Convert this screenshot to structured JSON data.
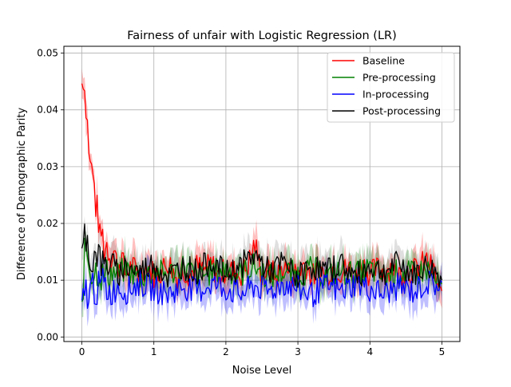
{
  "chart_data": {
    "type": "line",
    "title": "Fairness of unfair with Logistic Regression (LR)",
    "xlabel": "Noise Level",
    "ylabel": "Difference of Demographic Parity",
    "xlim": [
      -0.25,
      5.25
    ],
    "ylim": [
      -0.0008,
      0.0512
    ],
    "xticks": [
      0,
      1,
      2,
      3,
      4,
      5
    ],
    "xtick_labels": [
      "0",
      "1",
      "2",
      "3",
      "4",
      "5"
    ],
    "yticks": [
      0.0,
      0.01,
      0.02,
      0.03,
      0.04,
      0.05
    ],
    "ytick_labels": [
      "0.00",
      "0.01",
      "0.02",
      "0.03",
      "0.04",
      "0.05"
    ],
    "grid": true,
    "legend_position": "upper right",
    "series": [
      {
        "name": "Baseline",
        "color": "#ff0000",
        "x": [
          0.0,
          0.02,
          0.04,
          0.06,
          0.08,
          0.1,
          0.12,
          0.14,
          0.16,
          0.18,
          0.2,
          0.22,
          0.25,
          0.28,
          0.31,
          0.35,
          0.4,
          0.45,
          0.5,
          0.55,
          0.6,
          0.7,
          0.8,
          0.9,
          1.0,
          1.1,
          1.2,
          1.3,
          1.4,
          1.5,
          1.6,
          1.7,
          1.8,
          1.9,
          2.0,
          2.1,
          2.2,
          2.3,
          2.4,
          2.5,
          2.6,
          2.7,
          2.8,
          2.9,
          3.0,
          3.1,
          3.2,
          3.3,
          3.4,
          3.5,
          3.6,
          3.7,
          3.8,
          3.9,
          4.0,
          4.1,
          4.2,
          4.3,
          4.4,
          4.5,
          4.6,
          4.7,
          4.8,
          4.9,
          5.0
        ],
        "values": [
          0.0447,
          0.0462,
          0.0435,
          0.041,
          0.037,
          0.033,
          0.029,
          0.031,
          0.026,
          0.027,
          0.021,
          0.023,
          0.017,
          0.019,
          0.015,
          0.0165,
          0.014,
          0.0155,
          0.012,
          0.0145,
          0.011,
          0.0125,
          0.0105,
          0.013,
          0.011,
          0.0115,
          0.0135,
          0.0105,
          0.012,
          0.011,
          0.0125,
          0.0115,
          0.013,
          0.0105,
          0.012,
          0.0115,
          0.011,
          0.0125,
          0.0165,
          0.011,
          0.012,
          0.0105,
          0.0125,
          0.011,
          0.0115,
          0.013,
          0.0105,
          0.012,
          0.011,
          0.0125,
          0.0115,
          0.012,
          0.0105,
          0.013,
          0.011,
          0.012,
          0.0115,
          0.0125,
          0.011,
          0.012,
          0.0115,
          0.0125,
          0.0135,
          0.011,
          0.0065
        ]
      },
      {
        "name": "Pre-processing",
        "color": "#008000",
        "x": [
          0.0,
          0.05,
          0.1,
          0.15,
          0.2,
          0.3,
          0.4,
          0.5,
          0.6,
          0.8,
          1.0,
          1.2,
          1.4,
          1.6,
          1.8,
          2.0,
          2.2,
          2.4,
          2.6,
          2.8,
          3.0,
          3.2,
          3.4,
          3.6,
          3.8,
          4.0,
          4.2,
          4.4,
          4.6,
          4.8,
          5.0
        ],
        "values": [
          0.005,
          0.017,
          0.013,
          0.011,
          0.012,
          0.0105,
          0.0115,
          0.011,
          0.012,
          0.0105,
          0.0115,
          0.011,
          0.0125,
          0.0105,
          0.0115,
          0.012,
          0.011,
          0.0125,
          0.0105,
          0.0115,
          0.011,
          0.012,
          0.0105,
          0.0115,
          0.011,
          0.012,
          0.0105,
          0.0115,
          0.011,
          0.012,
          0.008
        ]
      },
      {
        "name": "In-processing",
        "color": "#0000ff",
        "x": [
          0.0,
          0.05,
          0.1,
          0.15,
          0.2,
          0.3,
          0.4,
          0.5,
          0.6,
          0.8,
          1.0,
          1.2,
          1.4,
          1.6,
          1.8,
          2.0,
          2.2,
          2.4,
          2.6,
          2.8,
          3.0,
          3.2,
          3.4,
          3.6,
          3.8,
          4.0,
          4.2,
          4.4,
          4.6,
          4.8,
          5.0
        ],
        "values": [
          0.0045,
          0.0085,
          0.007,
          0.0095,
          0.008,
          0.0095,
          0.0075,
          0.009,
          0.008,
          0.0095,
          0.0085,
          0.0075,
          0.009,
          0.008,
          0.0095,
          0.0085,
          0.0075,
          0.009,
          0.008,
          0.0095,
          0.0085,
          0.0075,
          0.009,
          0.008,
          0.0095,
          0.0085,
          0.0075,
          0.009,
          0.008,
          0.0095,
          0.009
        ]
      },
      {
        "name": "Post-processing",
        "color": "#000000",
        "x": [
          0.0,
          0.05,
          0.1,
          0.15,
          0.2,
          0.3,
          0.4,
          0.5,
          0.6,
          0.8,
          1.0,
          1.2,
          1.4,
          1.6,
          1.8,
          2.0,
          2.2,
          2.4,
          2.6,
          2.8,
          3.0,
          3.2,
          3.4,
          3.6,
          3.8,
          4.0,
          4.2,
          4.4,
          4.6,
          4.8,
          5.0
        ],
        "values": [
          0.0135,
          0.019,
          0.0145,
          0.013,
          0.0155,
          0.012,
          0.0135,
          0.011,
          0.0125,
          0.0115,
          0.013,
          0.0105,
          0.0125,
          0.0115,
          0.0135,
          0.011,
          0.0125,
          0.0145,
          0.0115,
          0.013,
          0.0105,
          0.0125,
          0.0115,
          0.013,
          0.0105,
          0.0125,
          0.0115,
          0.013,
          0.011,
          0.0125,
          0.0105
        ]
      }
    ]
  }
}
